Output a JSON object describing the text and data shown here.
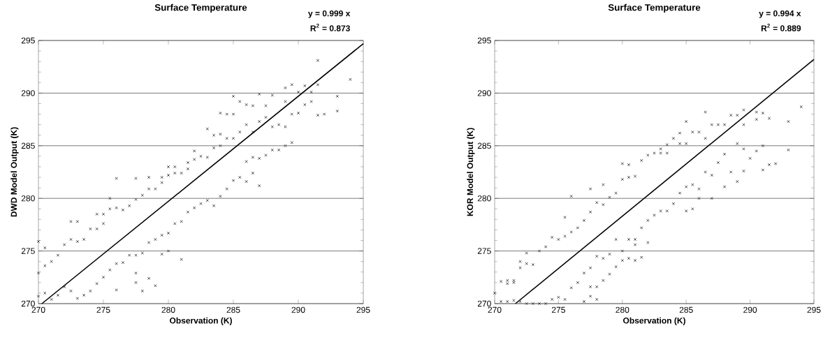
{
  "chart_data": [
    {
      "type": "scatter",
      "title": "Surface Temperature",
      "xlabel": "Observation (K)",
      "ylabel": "DWD Model Output (K)",
      "annotations": [
        "y = 0.999 x",
        "R$^{2}$ = 0.873"
      ],
      "xlim": [
        270,
        295
      ],
      "ylim": [
        270,
        295
      ],
      "xticks": [
        270,
        275,
        280,
        285,
        290,
        295
      ],
      "yticks": [
        270,
        275,
        280,
        285,
        290,
        295
      ],
      "grid": "y",
      "series": [
        {
          "marker": "cross",
          "color": "#3a3a3a",
          "x": [
            270,
            270,
            270,
            270.5,
            270.5,
            270.5,
            271,
            271,
            271.5,
            271.5,
            272,
            272,
            272.5,
            272.5,
            272.5,
            273,
            273,
            273,
            273.5,
            273.5,
            274,
            274,
            274.5,
            274.5,
            274.5,
            275,
            275,
            275,
            275.5,
            275.5,
            275.5,
            276,
            276,
            276,
            276,
            276.5,
            276.5,
            277,
            277,
            277.5,
            277.5,
            277.5,
            277.5,
            277.5,
            278,
            278,
            278,
            278.5,
            278.5,
            278.5,
            278.5,
            279,
            279,
            279,
            279.5,
            279.5,
            279.5,
            279.5,
            280,
            280,
            280,
            280,
            280.5,
            280.5,
            280.5,
            281,
            281,
            281,
            281.5,
            281.5,
            281.5,
            282,
            282,
            282,
            282.5,
            282.5,
            283,
            283,
            283,
            283.5,
            283.5,
            283.5,
            284,
            284,
            284,
            284,
            284.5,
            284.5,
            284.5,
            285,
            285,
            285,
            285,
            285.5,
            285.5,
            285.5,
            286,
            286,
            286,
            286,
            286.5,
            286.5,
            286.5,
            286.5,
            287,
            287,
            287,
            287,
            287.5,
            287.5,
            287.5,
            288,
            288,
            288,
            288.5,
            288.5,
            289,
            289,
            289,
            289,
            289.5,
            289.5,
            289.5,
            290,
            290,
            290.5,
            290.5,
            291,
            291,
            291.5,
            291.5,
            291.5,
            292,
            293,
            293,
            294
          ],
          "values": [
            270.7,
            272.9,
            275.9,
            271.0,
            273.6,
            275.3,
            270.4,
            274.0,
            270.8,
            274.6,
            271.6,
            275.6,
            271.2,
            276.1,
            277.8,
            270.5,
            275.9,
            277.8,
            270.8,
            276.1,
            271.2,
            277.1,
            271.9,
            277.1,
            278.5,
            272.5,
            277.6,
            278.5,
            273.2,
            279.0,
            280.0,
            273.8,
            279.1,
            281.9,
            271.3,
            273.9,
            278.9,
            274.6,
            279.3,
            274.6,
            279.9,
            281.9,
            272.0,
            272.9,
            274.8,
            280.3,
            271.2,
            275.8,
            280.9,
            282.0,
            272.4,
            276.1,
            280.9,
            271.7,
            276.5,
            281.5,
            282.0,
            274.7,
            276.7,
            282.2,
            283.0,
            275.0,
            277.6,
            282.4,
            283.0,
            277.8,
            282.4,
            274.2,
            278.7,
            282.8,
            283.4,
            279.1,
            283.7,
            284.5,
            279.5,
            284.0,
            279.8,
            283.9,
            286.6,
            279.3,
            284.8,
            286.0,
            280.2,
            285.0,
            288.1,
            286.1,
            280.9,
            285.7,
            288.0,
            281.7,
            285.7,
            289.7,
            288.0,
            282.0,
            286.3,
            289.2,
            283.5,
            287.0,
            288.9,
            281.6,
            283.9,
            286.3,
            288.8,
            282.4,
            283.8,
            287.3,
            289.9,
            281.2,
            284.1,
            287.7,
            288.8,
            284.6,
            286.8,
            289.8,
            284.6,
            287.0,
            285.0,
            286.8,
            290.5,
            289.2,
            290.8,
            288.0,
            285.3,
            290.1,
            288.1,
            290.7,
            288.9,
            290.1,
            289.2,
            293.1,
            290.8,
            287.9,
            288.0,
            289.7,
            288.3,
            291.3
          ]
        },
        {
          "type": "line",
          "marker": "none",
          "color": "#000000",
          "x": [
            270.27,
            295
          ],
          "values": [
            270.0,
            294.7
          ]
        }
      ]
    },
    {
      "type": "scatter",
      "title": "Surface Temperature",
      "xlabel": "Observation (K)",
      "ylabel": "KOR Model Output (K)",
      "annotations": [
        "y = 0.994 x",
        "R$^{2}$ = 0.889"
      ],
      "xlim": [
        270,
        295
      ],
      "ylim": [
        270,
        295
      ],
      "xticks": [
        270,
        275,
        280,
        285,
        290,
        295
      ],
      "yticks": [
        270,
        275,
        280,
        285,
        290,
        295
      ],
      "grid": "y",
      "series": [
        {
          "marker": "cross",
          "color": "#3a3a3a",
          "x": [
            270,
            270.5,
            270.5,
            271,
            271,
            271,
            271.5,
            271.5,
            271.5,
            272,
            272,
            272,
            272.5,
            272.5,
            272.5,
            273,
            273,
            273.5,
            273.5,
            274,
            274,
            274.5,
            274.5,
            275,
            275,
            275.5,
            275.5,
            275.5,
            276,
            276,
            276,
            276.5,
            276.5,
            277,
            277,
            277,
            277.5,
            277.5,
            277.5,
            277.5,
            277.5,
            278,
            278,
            278,
            278,
            278.5,
            278.5,
            278.5,
            278.5,
            279,
            279,
            279,
            279.5,
            279.5,
            279.5,
            280,
            280,
            280,
            280,
            280.5,
            280.5,
            280.5,
            280.5,
            281,
            281,
            281,
            281,
            281.5,
            281.5,
            281.5,
            282,
            282,
            282,
            282.5,
            282.5,
            283,
            283,
            283,
            283.5,
            283.5,
            283.5,
            284,
            284,
            284.5,
            284.5,
            284.5,
            285,
            285,
            285,
            285,
            285.5,
            285.5,
            285.5,
            286,
            286,
            286,
            286.5,
            286.5,
            286.5,
            287,
            287,
            287,
            287.5,
            287.5,
            288,
            288,
            288,
            288.5,
            288.5,
            289,
            289,
            289,
            289.5,
            289.5,
            289.5,
            289.5,
            290,
            290.5,
            290.5,
            290.5,
            291,
            291,
            291,
            291.5,
            291.5,
            292,
            293,
            293,
            294
          ],
          "values": [
            271.0,
            270.2,
            272.1,
            270.2,
            271.9,
            272.2,
            270.3,
            272.0,
            272.2,
            270.2,
            273.4,
            274.0,
            270.0,
            273.8,
            274.8,
            270.0,
            273.7,
            270.0,
            275.0,
            270.0,
            275.4,
            270.4,
            276.3,
            270.6,
            276.1,
            270.4,
            276.4,
            278.2,
            271.5,
            276.8,
            280.2,
            272.0,
            277.2,
            272.9,
            277.9,
            270.2,
            273.4,
            278.7,
            280.9,
            270.7,
            271.6,
            274.5,
            279.6,
            270.4,
            271.6,
            274.3,
            279.4,
            281.3,
            272.2,
            274.7,
            280.1,
            272.8,
            276.1,
            280.5,
            273.5,
            275.0,
            281.8,
            283.3,
            274.1,
            276.1,
            282.0,
            283.2,
            274.3,
            276.1,
            282.1,
            275.6,
            274.1,
            277.2,
            283.6,
            274.4,
            277.9,
            284.1,
            275.8,
            278.4,
            284.3,
            278.8,
            284.3,
            284.7,
            278.8,
            284.3,
            285.1,
            279.5,
            285.7,
            280.5,
            285.2,
            286.2,
            281.1,
            285.2,
            287.3,
            278.8,
            281.3,
            286.3,
            279.0,
            280.9,
            286.3,
            280.0,
            282.5,
            285.7,
            288.2,
            282.2,
            287.0,
            280.0,
            283.4,
            287.0,
            284.2,
            287.0,
            281.1,
            282.5,
            287.9,
            285.2,
            287.9,
            281.6,
            287.0,
            288.4,
            284.7,
            282.6,
            283.8,
            288.2,
            287.5,
            284.5,
            288.1,
            285.0,
            282.7,
            287.6,
            283.2,
            283.3,
            287.3,
            284.6,
            288.7
          ]
        },
        {
          "type": "line",
          "marker": "none",
          "color": "#000000",
          "x": [
            271.63,
            295
          ],
          "values": [
            270.0,
            293.2
          ]
        }
      ]
    }
  ]
}
